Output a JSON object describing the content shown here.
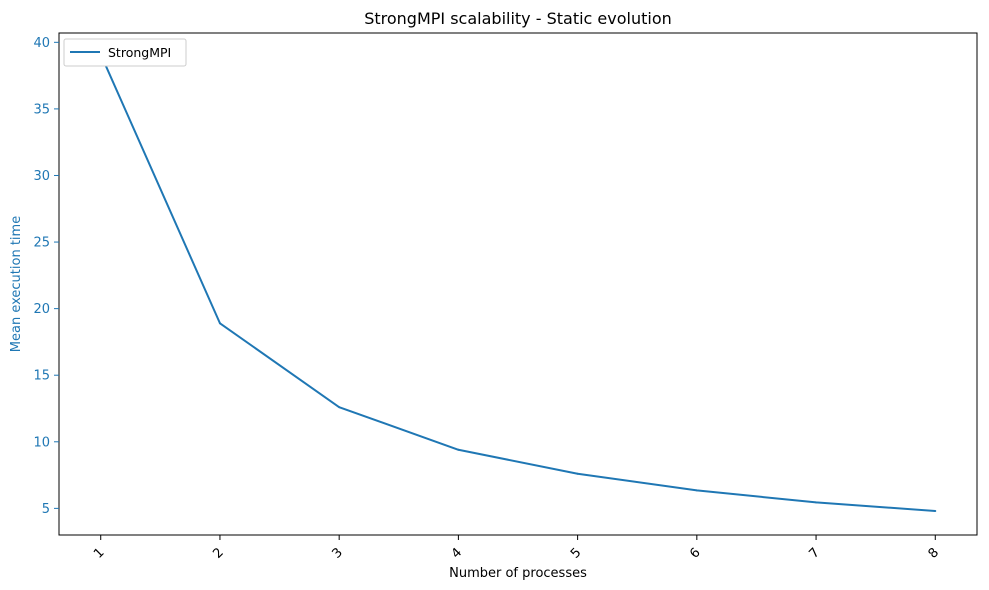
{
  "chart_data": {
    "type": "line",
    "title": "StrongMPI scalability - Static evolution",
    "xlabel": "Number of processes",
    "ylabel": "Mean execution time",
    "x": [
      1,
      2,
      3,
      4,
      5,
      6,
      7,
      8
    ],
    "x_tick_labels": [
      "1",
      "2",
      "3",
      "4",
      "5",
      "6",
      "7",
      "8"
    ],
    "y_ticks": [
      5,
      10,
      15,
      20,
      25,
      30,
      35,
      40
    ],
    "y_tick_labels": [
      "5",
      "10",
      "15",
      "20",
      "25",
      "30",
      "35",
      "40"
    ],
    "xlim": [
      0.65,
      8.35
    ],
    "ylim": [
      3.0,
      40.7
    ],
    "series": [
      {
        "name": "StrongMPI",
        "color": "#1f77b4",
        "values": [
          39.1,
          18.9,
          12.6,
          9.4,
          7.6,
          6.35,
          5.45,
          4.8
        ]
      }
    ],
    "legend_position": "top-left",
    "ylabel_color": "#1f77b4",
    "ytick_color": "#1f77b4",
    "x_tick_rotation": "45deg",
    "grid": false
  }
}
